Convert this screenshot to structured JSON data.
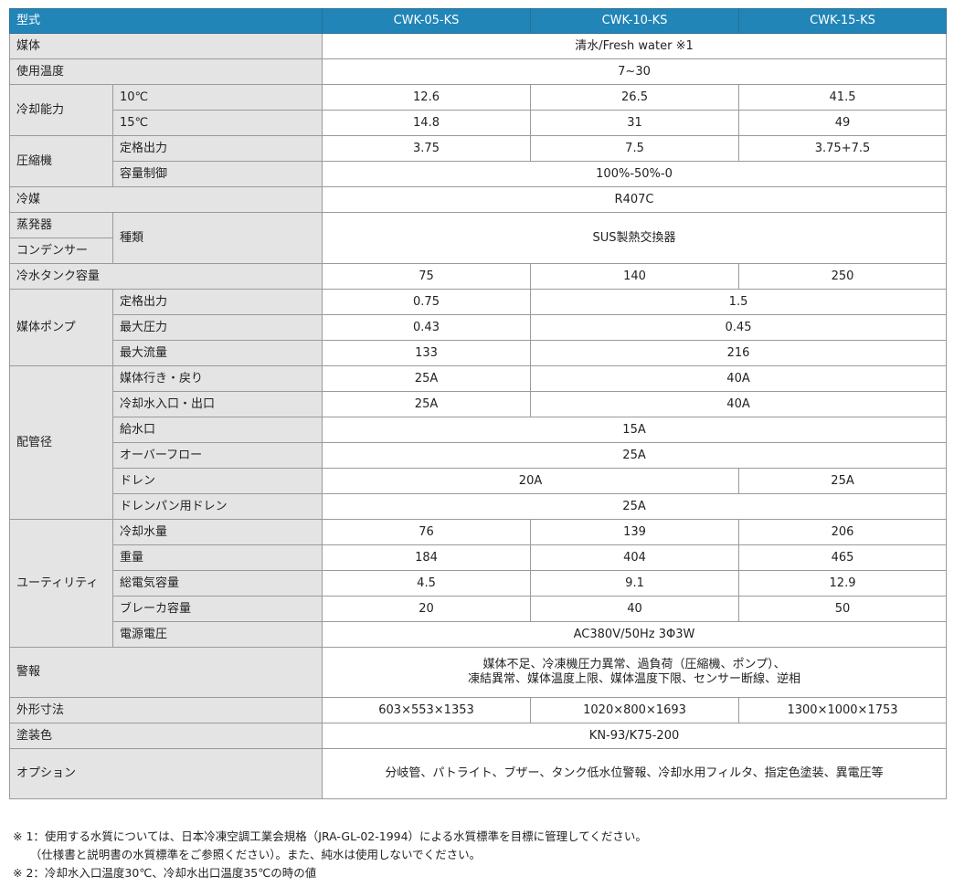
{
  "colors": {
    "header_bg": "#2185b8",
    "label_bg": "#e4e4e4",
    "border": "#9a9a9a"
  },
  "table": {
    "rows": [
      {
        "head": true,
        "cells": [
          {
            "t": "型式",
            "cs": 2,
            "lab": true
          },
          {
            "t": "CWK-05-KS"
          },
          {
            "t": "CWK-10-KS"
          },
          {
            "t": "CWK-15-KS"
          }
        ]
      },
      {
        "cells": [
          {
            "t": "媒体",
            "cs": 2,
            "lab": true
          },
          {
            "t": "清水/Fresh water ※1",
            "cs": 3
          }
        ]
      },
      {
        "cells": [
          {
            "t": "使用温度",
            "cs": 2,
            "lab": true
          },
          {
            "t": "7~30",
            "cs": 3
          }
        ]
      },
      {
        "cells": [
          {
            "t": "冷却能力",
            "rs": 2,
            "lab": true
          },
          {
            "t": "10℃",
            "lab": true
          },
          {
            "t": "12.6"
          },
          {
            "t": "26.5"
          },
          {
            "t": "41.5"
          }
        ]
      },
      {
        "cells": [
          {
            "t": "15℃",
            "lab": true
          },
          {
            "t": "14.8"
          },
          {
            "t": "31"
          },
          {
            "t": "49"
          }
        ]
      },
      {
        "cells": [
          {
            "t": "圧縮機",
            "rs": 2,
            "lab": true
          },
          {
            "t": "定格出力",
            "lab": true
          },
          {
            "t": "3.75"
          },
          {
            "t": "7.5"
          },
          {
            "t": "3.75+7.5"
          }
        ]
      },
      {
        "cells": [
          {
            "t": "容量制御",
            "lab": true
          },
          {
            "t": "100%-50%-0",
            "cs": 3
          }
        ]
      },
      {
        "cells": [
          {
            "t": "冷媒",
            "cs": 2,
            "lab": true
          },
          {
            "t": "R407C",
            "cs": 3
          }
        ]
      },
      {
        "cells": [
          {
            "t": "蒸発器",
            "lab": true
          },
          {
            "t": "種類",
            "rs": 2,
            "lab": true
          },
          {
            "t": "SUS製熱交換器",
            "cs": 3,
            "rs": 2
          }
        ]
      },
      {
        "cells": [
          {
            "t": "コンデンサー",
            "lab": true
          }
        ]
      },
      {
        "cells": [
          {
            "t": "冷水タンク容量",
            "cs": 2,
            "lab": true
          },
          {
            "t": "75"
          },
          {
            "t": "140"
          },
          {
            "t": "250"
          }
        ]
      },
      {
        "cells": [
          {
            "t": "媒体ポンプ",
            "rs": 3,
            "lab": true
          },
          {
            "t": "定格出力",
            "lab": true
          },
          {
            "t": "0.75"
          },
          {
            "t": "1.5",
            "cs": 2
          }
        ]
      },
      {
        "cells": [
          {
            "t": "最大圧力",
            "lab": true
          },
          {
            "t": "0.43"
          },
          {
            "t": "0.45",
            "cs": 2
          }
        ]
      },
      {
        "cells": [
          {
            "t": "最大流量",
            "lab": true
          },
          {
            "t": "133"
          },
          {
            "t": "216",
            "cs": 2
          }
        ]
      },
      {
        "cells": [
          {
            "t": "配管径",
            "rs": 6,
            "lab": true
          },
          {
            "t": "媒体行き・戻り",
            "lab": true
          },
          {
            "t": "25A"
          },
          {
            "t": "40A",
            "cs": 2
          }
        ]
      },
      {
        "cells": [
          {
            "t": "冷却水入口・出口",
            "lab": true
          },
          {
            "t": "25A"
          },
          {
            "t": "40A",
            "cs": 2
          }
        ]
      },
      {
        "cells": [
          {
            "t": "給水口",
            "lab": true
          },
          {
            "t": "15A",
            "cs": 3
          }
        ]
      },
      {
        "cells": [
          {
            "t": "オーバーフロー",
            "lab": true
          },
          {
            "t": "25A",
            "cs": 3
          }
        ]
      },
      {
        "cells": [
          {
            "t": "ドレン",
            "lab": true
          },
          {
            "t": "20A",
            "cs": 2
          },
          {
            "t": "25A"
          }
        ]
      },
      {
        "cells": [
          {
            "t": "ドレンパン用ドレン",
            "lab": true
          },
          {
            "t": "25A",
            "cs": 3
          }
        ]
      },
      {
        "cells": [
          {
            "t": "ユーティリティ",
            "rs": 5,
            "lab": true
          },
          {
            "t": "冷却水量",
            "lab": true
          },
          {
            "t": "76"
          },
          {
            "t": "139"
          },
          {
            "t": "206"
          }
        ]
      },
      {
        "cells": [
          {
            "t": "重量",
            "lab": true
          },
          {
            "t": "184"
          },
          {
            "t": "404"
          },
          {
            "t": "465"
          }
        ]
      },
      {
        "cells": [
          {
            "t": "総電気容量",
            "lab": true
          },
          {
            "t": "4.5"
          },
          {
            "t": "9.1"
          },
          {
            "t": "12.9"
          }
        ]
      },
      {
        "cells": [
          {
            "t": "ブレーカ容量",
            "lab": true
          },
          {
            "t": "20"
          },
          {
            "t": "40"
          },
          {
            "t": "50"
          }
        ]
      },
      {
        "cells": [
          {
            "t": "電源電圧",
            "lab": true
          },
          {
            "t": "AC380V/50Hz 3Φ3W",
            "cs": 3
          }
        ]
      },
      {
        "tall": true,
        "cells": [
          {
            "t": "警報",
            "cs": 2,
            "lab": true
          },
          {
            "t": "媒体不足、冷凍機圧力異常、過負荷（圧縮機、ポンプ）、",
            "t2": "凍結異常、媒体温度上限、媒体温度下限、センサー断線、逆相",
            "cs": 3
          }
        ]
      },
      {
        "cells": [
          {
            "t": "外形寸法",
            "cs": 2,
            "lab": true
          },
          {
            "t": "603×553×1353"
          },
          {
            "t": "1020×800×1693"
          },
          {
            "t": "1300×1000×1753"
          }
        ]
      },
      {
        "cells": [
          {
            "t": "塗装色",
            "cs": 2,
            "lab": true
          },
          {
            "t": "KN-93/K75-200",
            "cs": 3
          }
        ]
      },
      {
        "tall": true,
        "cells": [
          {
            "t": "オプション",
            "cs": 2,
            "lab": true
          },
          {
            "t": "分岐管、パトライト、ブザー、タンク低水位警報、冷却水用フィルタ、指定色塗装、異電圧等",
            "cs": 3
          }
        ]
      }
    ]
  },
  "notes": [
    "※ 1：使用する水質については、日本冷凍空調工業会規格（JRA-GL-02-1994）による水質標準を目標に管理してください。",
    "　　（仕様書と説明書の水質標準をご参照ください）。また、純水は使用しないでください。",
    "※ 2：冷却水入口温度30℃、冷却水出口温度35℃の時の値"
  ]
}
